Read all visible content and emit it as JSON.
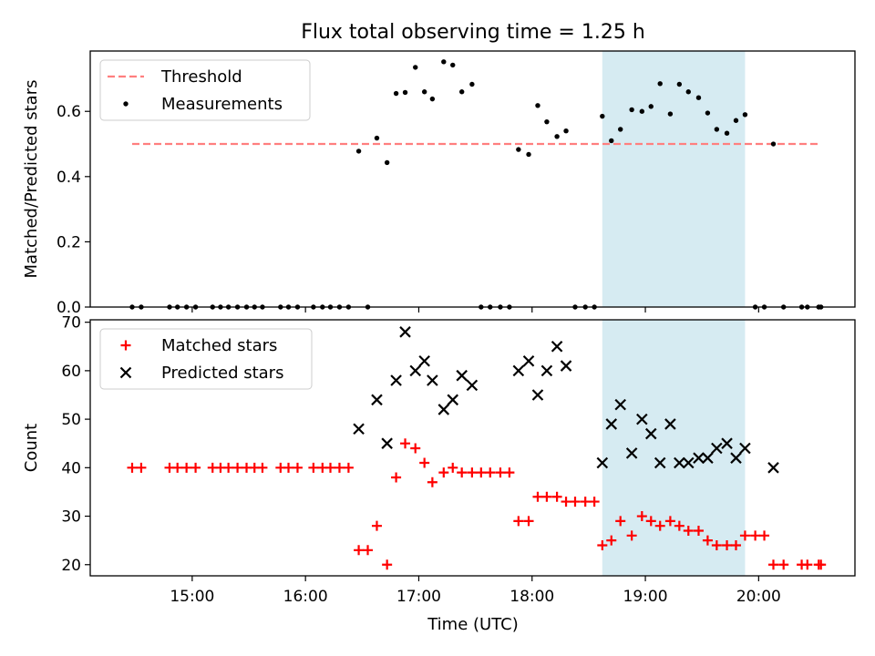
{
  "chart_data": {
    "title": "Flux total observing time = 1.25 h",
    "xlabel": "Time (UTC)",
    "x_unit": "hours UTC",
    "xlim": [
      14.1,
      20.85
    ],
    "x_ticks": [
      15,
      16,
      17,
      18,
      19,
      20
    ],
    "x_tick_labels": [
      "15:00",
      "16:00",
      "17:00",
      "18:00",
      "19:00",
      "20:00"
    ],
    "shaded_interval": {
      "start": 18.62,
      "end": 19.88,
      "color": "#add8e6"
    },
    "panels": [
      {
        "type": "scatter",
        "ylabel": "Matched/Predicted stars",
        "ylim": [
          0,
          0.785
        ],
        "y_ticks": [
          0,
          0.2,
          0.4,
          0.6
        ],
        "y_tick_labels": [
          "0.0",
          "0.2",
          "0.4",
          "0.6"
        ],
        "legend_position": "top-left",
        "series": [
          {
            "name": "Threshold",
            "kind": "line",
            "style": "dashed",
            "color": "#ff7f7f",
            "points": [
              [
                14.47,
                0.5
              ],
              [
                20.55,
                0.5
              ]
            ]
          },
          {
            "name": "Measurements",
            "kind": "dot",
            "color": "#000000",
            "points": [
              [
                14.47,
                0
              ],
              [
                14.55,
                0
              ],
              [
                14.8,
                0
              ],
              [
                14.87,
                0
              ],
              [
                14.95,
                0
              ],
              [
                15.03,
                0
              ],
              [
                15.18,
                0
              ],
              [
                15.25,
                0
              ],
              [
                15.32,
                0
              ],
              [
                15.4,
                0
              ],
              [
                15.48,
                0
              ],
              [
                15.55,
                0
              ],
              [
                15.62,
                0
              ],
              [
                15.78,
                0
              ],
              [
                15.85,
                0
              ],
              [
                15.93,
                0
              ],
              [
                16.07,
                0
              ],
              [
                16.15,
                0
              ],
              [
                16.22,
                0
              ],
              [
                16.3,
                0
              ],
              [
                16.38,
                0
              ],
              [
                16.47,
                0.478
              ],
              [
                16.55,
                0
              ],
              [
                16.63,
                0.518
              ],
              [
                16.72,
                0.443
              ],
              [
                16.8,
                0.655
              ],
              [
                16.88,
                0.658
              ],
              [
                16.97,
                0.735
              ],
              [
                17.05,
                0.66
              ],
              [
                17.12,
                0.638
              ],
              [
                17.22,
                0.752
              ],
              [
                17.3,
                0.742
              ],
              [
                17.38,
                0.66
              ],
              [
                17.47,
                0.683
              ],
              [
                17.55,
                0
              ],
              [
                17.63,
                0
              ],
              [
                17.72,
                0
              ],
              [
                17.8,
                0
              ],
              [
                17.88,
                0.483
              ],
              [
                17.97,
                0.468
              ],
              [
                18.05,
                0.618
              ],
              [
                18.13,
                0.568
              ],
              [
                18.22,
                0.523
              ],
              [
                18.3,
                0.54
              ],
              [
                18.38,
                0
              ],
              [
                18.47,
                0
              ],
              [
                18.55,
                0
              ],
              [
                18.62,
                0.585
              ],
              [
                18.7,
                0.51
              ],
              [
                18.78,
                0.545
              ],
              [
                18.88,
                0.605
              ],
              [
                18.97,
                0.6
              ],
              [
                19.05,
                0.615
              ],
              [
                19.13,
                0.685
              ],
              [
                19.22,
                0.592
              ],
              [
                19.3,
                0.683
              ],
              [
                19.38,
                0.66
              ],
              [
                19.47,
                0.642
              ],
              [
                19.55,
                0.595
              ],
              [
                19.63,
                0.545
              ],
              [
                19.72,
                0.533
              ],
              [
                19.8,
                0.572
              ],
              [
                19.88,
                0.59
              ],
              [
                19.97,
                0
              ],
              [
                20.05,
                0
              ],
              [
                20.13,
                0.5
              ],
              [
                20.22,
                0
              ],
              [
                20.38,
                0
              ],
              [
                20.43,
                0
              ],
              [
                20.53,
                0
              ],
              [
                20.55,
                0
              ]
            ]
          }
        ]
      },
      {
        "type": "scatter",
        "ylabel": "Count",
        "ylim": [
          17.7,
          70.5
        ],
        "y_ticks": [
          20,
          30,
          40,
          50,
          60,
          70
        ],
        "y_tick_labels": [
          "20",
          "30",
          "40",
          "50",
          "60",
          "70"
        ],
        "legend_position": "top-left",
        "series": [
          {
            "name": "Matched stars",
            "kind": "plus",
            "color": "#ff0000",
            "points": [
              [
                14.47,
                40
              ],
              [
                14.55,
                40
              ],
              [
                14.8,
                40
              ],
              [
                14.87,
                40
              ],
              [
                14.95,
                40
              ],
              [
                15.03,
                40
              ],
              [
                15.18,
                40
              ],
              [
                15.25,
                40
              ],
              [
                15.32,
                40
              ],
              [
                15.4,
                40
              ],
              [
                15.48,
                40
              ],
              [
                15.55,
                40
              ],
              [
                15.62,
                40
              ],
              [
                15.78,
                40
              ],
              [
                15.85,
                40
              ],
              [
                15.93,
                40
              ],
              [
                16.07,
                40
              ],
              [
                16.15,
                40
              ],
              [
                16.22,
                40
              ],
              [
                16.3,
                40
              ],
              [
                16.38,
                40
              ],
              [
                16.47,
                23
              ],
              [
                16.55,
                23
              ],
              [
                16.63,
                28
              ],
              [
                16.72,
                20
              ],
              [
                16.8,
                38
              ],
              [
                16.88,
                45
              ],
              [
                16.97,
                44
              ],
              [
                17.05,
                41
              ],
              [
                17.12,
                37
              ],
              [
                17.22,
                39
              ],
              [
                17.3,
                40
              ],
              [
                17.38,
                39
              ],
              [
                17.47,
                39
              ],
              [
                17.55,
                39
              ],
              [
                17.63,
                39
              ],
              [
                17.72,
                39
              ],
              [
                17.8,
                39
              ],
              [
                17.88,
                29
              ],
              [
                17.97,
                29
              ],
              [
                18.05,
                34
              ],
              [
                18.13,
                34
              ],
              [
                18.22,
                34
              ],
              [
                18.3,
                33
              ],
              [
                18.38,
                33
              ],
              [
                18.47,
                33
              ],
              [
                18.55,
                33
              ],
              [
                18.62,
                24
              ],
              [
                18.7,
                25
              ],
              [
                18.78,
                29
              ],
              [
                18.88,
                26
              ],
              [
                18.97,
                30
              ],
              [
                19.05,
                29
              ],
              [
                19.13,
                28
              ],
              [
                19.22,
                29
              ],
              [
                19.3,
                28
              ],
              [
                19.38,
                27
              ],
              [
                19.47,
                27
              ],
              [
                19.55,
                25
              ],
              [
                19.63,
                24
              ],
              [
                19.72,
                24
              ],
              [
                19.8,
                24
              ],
              [
                19.88,
                26
              ],
              [
                19.97,
                26
              ],
              [
                20.05,
                26
              ],
              [
                20.13,
                20
              ],
              [
                20.22,
                20
              ],
              [
                20.38,
                20
              ],
              [
                20.43,
                20
              ],
              [
                20.53,
                20
              ],
              [
                20.55,
                20
              ]
            ]
          },
          {
            "name": "Predicted stars",
            "kind": "cross",
            "color": "#000000",
            "points": [
              [
                16.47,
                48
              ],
              [
                16.63,
                54
              ],
              [
                16.72,
                45
              ],
              [
                16.8,
                58
              ],
              [
                16.88,
                68
              ],
              [
                16.97,
                60
              ],
              [
                17.05,
                62
              ],
              [
                17.12,
                58
              ],
              [
                17.22,
                52
              ],
              [
                17.3,
                54
              ],
              [
                17.38,
                59
              ],
              [
                17.47,
                57
              ],
              [
                17.88,
                60
              ],
              [
                17.97,
                62
              ],
              [
                18.05,
                55
              ],
              [
                18.13,
                60
              ],
              [
                18.22,
                65
              ],
              [
                18.3,
                61
              ],
              [
                18.62,
                41
              ],
              [
                18.7,
                49
              ],
              [
                18.78,
                53
              ],
              [
                18.88,
                43
              ],
              [
                18.97,
                50
              ],
              [
                19.05,
                47
              ],
              [
                19.13,
                41
              ],
              [
                19.22,
                49
              ],
              [
                19.3,
                41
              ],
              [
                19.38,
                41
              ],
              [
                19.47,
                42
              ],
              [
                19.55,
                42
              ],
              [
                19.63,
                44
              ],
              [
                19.72,
                45
              ],
              [
                19.8,
                42
              ],
              [
                19.88,
                44
              ],
              [
                20.13,
                40
              ]
            ]
          }
        ]
      }
    ]
  }
}
